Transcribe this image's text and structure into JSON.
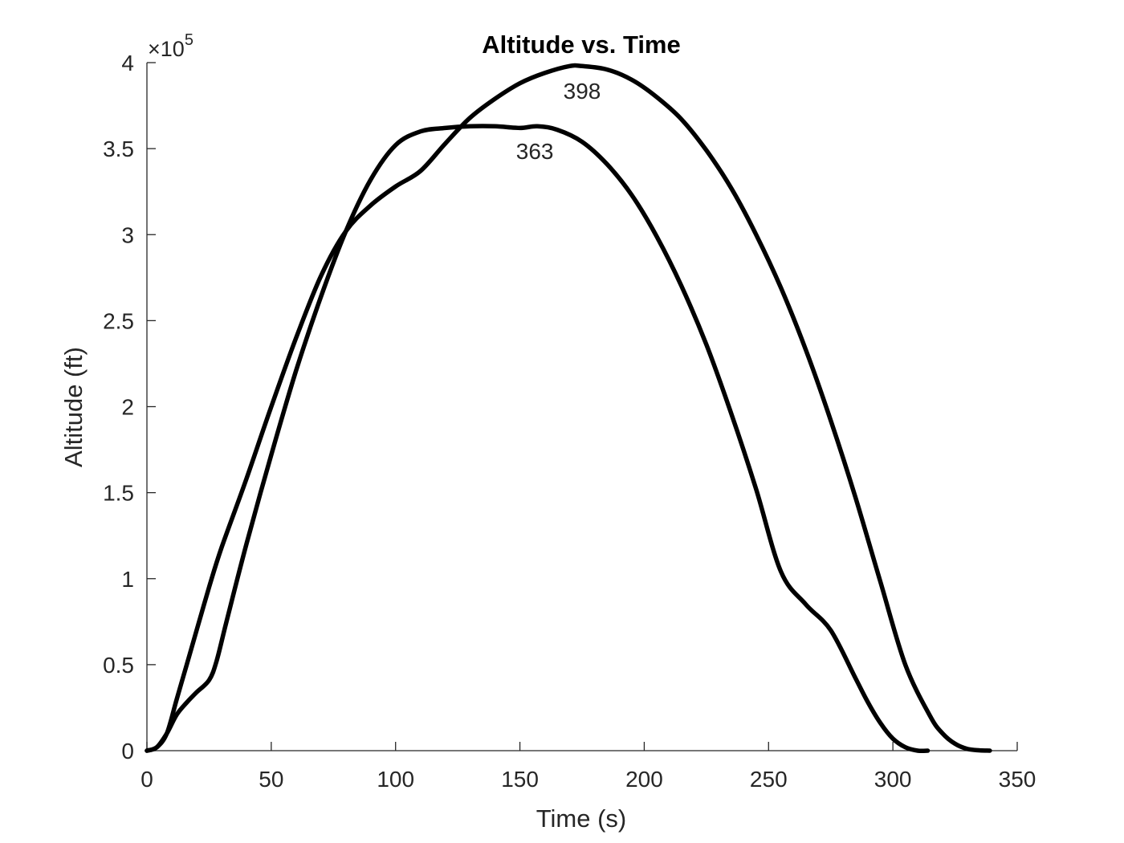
{
  "chart_data": {
    "type": "line",
    "title": "Altitude vs. Time",
    "xlabel": "Time (s)",
    "ylabel": "Altitude (ft)",
    "xlim": [
      0,
      350
    ],
    "ylim": [
      0,
      400000
    ],
    "x_ticks": [
      "0",
      "50",
      "100",
      "150",
      "200",
      "250",
      "300",
      "350"
    ],
    "y_ticks": [
      "0",
      "0.5",
      "1",
      "1.5",
      "2",
      "2.5",
      "3",
      "3.5",
      "4"
    ],
    "y_multiplier": {
      "base": "×10",
      "exponent": "5"
    },
    "grid": false,
    "line_color": "#000000",
    "series": [
      {
        "x": [
          0,
          4,
          8,
          12,
          16,
          20,
          25,
          28,
          32,
          40,
          50,
          60,
          70,
          80,
          90,
          100,
          110,
          120,
          130,
          140,
          150,
          157,
          165,
          175,
          185,
          195,
          205,
          215,
          225,
          235,
          245,
          255,
          265,
          275,
          285,
          290,
          295,
          300,
          305,
          310,
          314
        ],
        "y": [
          0,
          2000,
          10000,
          21000,
          28000,
          34000,
          41000,
          52000,
          75000,
          120000,
          172000,
          221000,
          264000,
          302000,
          332000,
          352000,
          360000,
          362000,
          363000,
          363000,
          362000,
          363000,
          361000,
          354000,
          341000,
          323000,
          299000,
          270000,
          236000,
          196000,
          152000,
          104000,
          85000,
          70000,
          42000,
          28000,
          16000,
          7000,
          2000,
          0,
          0
        ]
      },
      {
        "x": [
          0,
          4,
          8,
          12,
          16,
          20,
          25,
          30,
          40,
          50,
          60,
          70,
          80,
          90,
          100,
          110,
          120,
          130,
          140,
          150,
          160,
          170,
          175,
          185,
          195,
          205,
          215,
          225,
          235,
          245,
          255,
          265,
          275,
          285,
          295,
          305,
          315,
          320,
          325,
          330,
          335,
          339
        ],
        "y": [
          0,
          2000,
          10000,
          30000,
          50000,
          70000,
          95000,
          118000,
          158000,
          200000,
          240000,
          276000,
          302000,
          317000,
          328000,
          337000,
          353000,
          368000,
          379000,
          388000,
          394000,
          398000,
          398000,
          396000,
          390000,
          380000,
          367000,
          349000,
          327000,
          300000,
          269000,
          233000,
          192000,
          147000,
          98000,
          50000,
          20000,
          10000,
          4000,
          1000,
          200,
          0
        ]
      }
    ],
    "annotations": [
      {
        "text": "398",
        "x": 175,
        "y": 379000
      },
      {
        "text": "363",
        "x": 156,
        "y": 344000
      }
    ]
  }
}
